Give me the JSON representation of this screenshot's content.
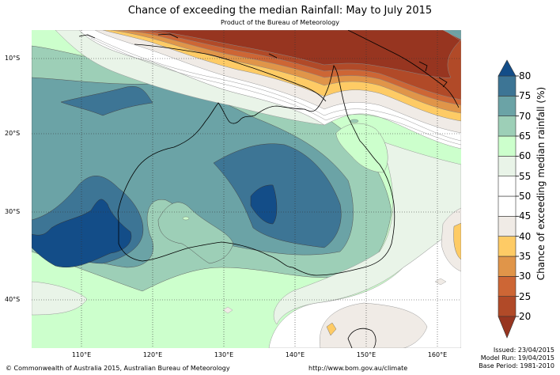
{
  "chart_data": {
    "type": "heatmap",
    "title": "Chance of exceeding the median Rainfall: May to July 2015",
    "subtitle": "Product of the Bureau of Meteorology",
    "colorbar_label": "Chance of exceeding median rainfall (%)",
    "lat_ticks": [
      "10°S",
      "20°S",
      "30°S",
      "40°S"
    ],
    "lon_ticks": [
      "110°E",
      "120°E",
      "130°E",
      "140°E",
      "150°E",
      "160°E"
    ],
    "lat_tick_values": [
      -10,
      -20,
      -30,
      -40
    ],
    "lon_tick_values": [
      110,
      120,
      130,
      140,
      150,
      160
    ],
    "lon_range": [
      102.5,
      162.5
    ],
    "lat_range": [
      -46.5,
      -6.5
    ],
    "levels": [
      20,
      25,
      30,
      35,
      40,
      45,
      50,
      55,
      60,
      65,
      70,
      75,
      80
    ],
    "level_labels": [
      "20",
      "25",
      "30",
      "35",
      "40",
      "45",
      "50",
      "55",
      "60",
      "65",
      "70",
      "75",
      "80"
    ],
    "colors": {
      "below_20": "#973520",
      "20_25": "#b14a28",
      "25_30": "#cd6635",
      "30_35": "#e09549",
      "35_40": "#fecb65",
      "40_45": "#f0ebe6",
      "45_50": "#ffffff",
      "50_55": "#ffffff",
      "55_60": "#e9f4e8",
      "60_65": "#ccffcc",
      "65_70": "#9dcfb7",
      "70_75": "#6ba3a6",
      "75_80": "#3d7595",
      "above_80": "#134d88"
    }
  },
  "footer": {
    "copyright": "© Commonwealth of Australia 2015, Australian Bureau of Meteorology",
    "url": "http://www.bom.gov.au/climate",
    "issued": "Issued: 23/04/2015",
    "model_run": "Model Run: 19/04/2015",
    "base_period": "Base Period: 1981-2010"
  }
}
